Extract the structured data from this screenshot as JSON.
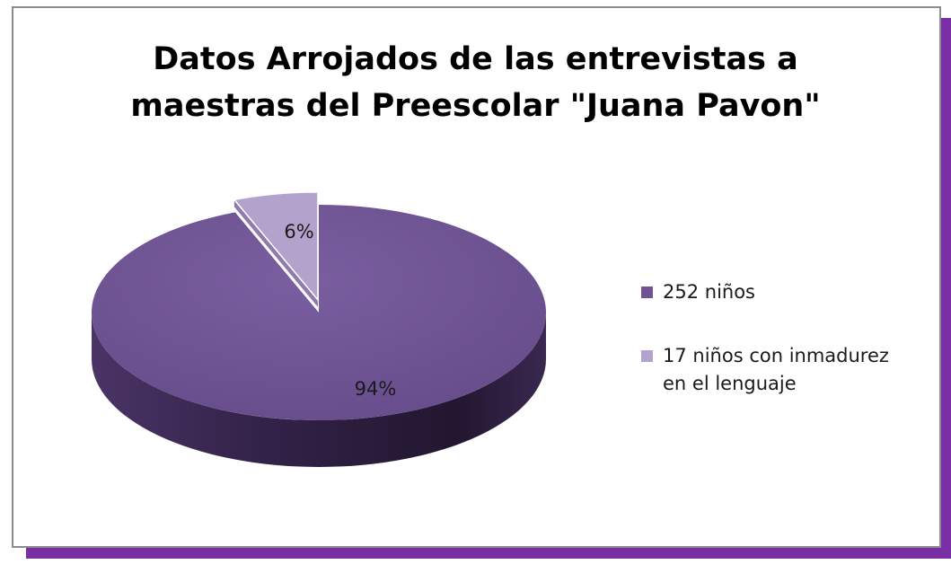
{
  "chart_data": {
    "type": "pie",
    "style": "3d",
    "title": "Datos Arrojados de las entrevistas a maestras del Preescolar \"Juana Pavon\"",
    "title_lines": [
      "Datos Arrojados de las entrevistas a",
      "maestras del Preescolar \"Juana Pavon\""
    ],
    "slices": [
      {
        "label": "252 niños",
        "value": 94,
        "data_label": "94%",
        "color": "#6f5494",
        "exploded": false
      },
      {
        "label": "17 niños con inmadurez en el lenguaje",
        "value": 6,
        "data_label": "6%",
        "color": "#b3a3cc",
        "exploded": true
      }
    ],
    "legend_placement": "right"
  },
  "legend": {
    "items": [
      {
        "lines": [
          "252 niños"
        ],
        "color": "#6f5494"
      },
      {
        "lines": [
          "17 niños con inmadurez",
          "en el lenguaje"
        ],
        "color": "#b3a3cc"
      }
    ]
  }
}
